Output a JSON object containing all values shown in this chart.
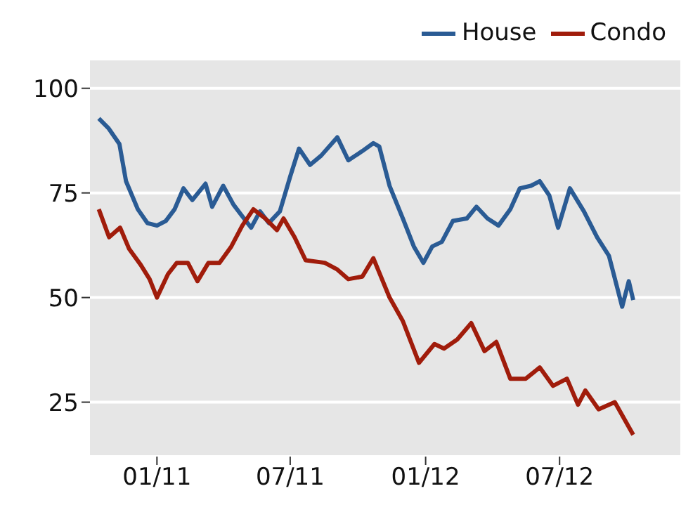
{
  "chart_data": {
    "type": "line",
    "series": [
      {
        "name": "House",
        "color": "#2a5b94",
        "x": [
          "2010-10-14",
          "2010-10-27",
          "2010-11-11",
          "2010-11-20",
          "2010-12-06",
          "2010-12-19",
          "2011-01-01",
          "2011-01-13",
          "2011-01-25",
          "2011-02-06",
          "2011-02-18",
          "2011-03-08",
          "2011-03-17",
          "2011-04-01",
          "2011-04-15",
          "2011-04-27",
          "2011-05-09",
          "2011-05-21",
          "2011-06-02",
          "2011-06-17",
          "2011-07-01",
          "2011-07-13",
          "2011-07-28",
          "2011-08-12",
          "2011-09-03",
          "2011-09-18",
          "2011-10-07",
          "2011-10-22",
          "2011-10-30",
          "2011-11-13",
          "2011-12-01",
          "2011-12-16",
          "2011-12-29",
          "2012-01-10",
          "2012-01-23",
          "2012-02-07",
          "2012-02-26",
          "2012-03-10",
          "2012-03-25",
          "2012-04-09",
          "2012-04-25",
          "2012-05-08",
          "2012-05-23",
          "2012-06-04",
          "2012-06-17",
          "2012-06-29",
          "2012-07-15",
          "2012-08-03",
          "2012-08-21",
          "2012-09-06",
          "2012-09-24",
          "2012-10-03",
          "2012-10-09"
        ],
        "values": [
          92.8,
          90.5,
          86.7,
          77.8,
          71.1,
          67.8,
          67.2,
          68.3,
          71.1,
          76.1,
          73.3,
          77.2,
          71.7,
          76.7,
          72.2,
          69.4,
          66.7,
          70.6,
          67.8,
          70.6,
          78.9,
          85.6,
          81.7,
          83.9,
          88.3,
          82.8,
          85.0,
          86.9,
          86.1,
          76.7,
          68.9,
          62.2,
          58.3,
          62.2,
          63.3,
          68.3,
          68.9,
          71.7,
          68.9,
          67.2,
          71.1,
          76.1,
          76.7,
          77.8,
          74.4,
          66.7,
          76.1,
          70.6,
          64.4,
          60.0,
          47.8,
          53.9,
          49.4
        ]
      },
      {
        "name": "Condo",
        "color": "#a01c0b",
        "x": [
          "2010-10-14",
          "2010-10-28",
          "2010-11-12",
          "2010-11-24",
          "2010-12-10",
          "2010-12-22",
          "2011-01-01",
          "2011-01-16",
          "2011-01-28",
          "2011-02-12",
          "2011-02-25",
          "2011-03-12",
          "2011-03-27",
          "2011-04-12",
          "2011-04-27",
          "2011-05-12",
          "2011-05-28",
          "2011-06-13",
          "2011-06-22",
          "2011-07-07",
          "2011-07-22",
          "2011-08-17",
          "2011-09-03",
          "2011-09-18",
          "2011-10-07",
          "2011-10-22",
          "2011-11-13",
          "2011-12-01",
          "2011-12-23",
          "2012-01-13",
          "2012-01-26",
          "2012-02-13",
          "2012-03-03",
          "2012-03-21",
          "2012-04-06",
          "2012-04-25",
          "2012-05-16",
          "2012-06-04",
          "2012-06-22",
          "2012-07-11",
          "2012-07-26",
          "2012-08-05",
          "2012-08-23",
          "2012-09-14",
          "2012-10-09"
        ],
        "values": [
          71.1,
          64.4,
          66.7,
          61.7,
          57.8,
          54.4,
          50.0,
          55.6,
          58.3,
          58.3,
          53.9,
          58.3,
          58.3,
          62.2,
          67.2,
          71.1,
          68.9,
          66.1,
          68.9,
          64.4,
          58.9,
          58.3,
          56.7,
          54.4,
          55.0,
          59.4,
          50.0,
          44.4,
          34.4,
          38.9,
          37.8,
          40.0,
          43.9,
          37.2,
          39.4,
          30.6,
          30.6,
          33.3,
          28.9,
          30.6,
          24.4,
          27.8,
          23.3,
          25.0,
          17.2
        ]
      }
    ],
    "xlim": [
      "2010-10-02",
      "2012-12-12"
    ],
    "xticks": [
      {
        "value": "2011-01-01",
        "label": "01/11"
      },
      {
        "value": "2011-07-01",
        "label": "07/11"
      },
      {
        "value": "2012-01-01",
        "label": "01/12"
      },
      {
        "value": "2012-07-01",
        "label": "07/12"
      }
    ],
    "ylim": [
      12,
      107
    ],
    "yticks": [
      25,
      50,
      75,
      100
    ],
    "grid": "y",
    "legend": "top right"
  }
}
